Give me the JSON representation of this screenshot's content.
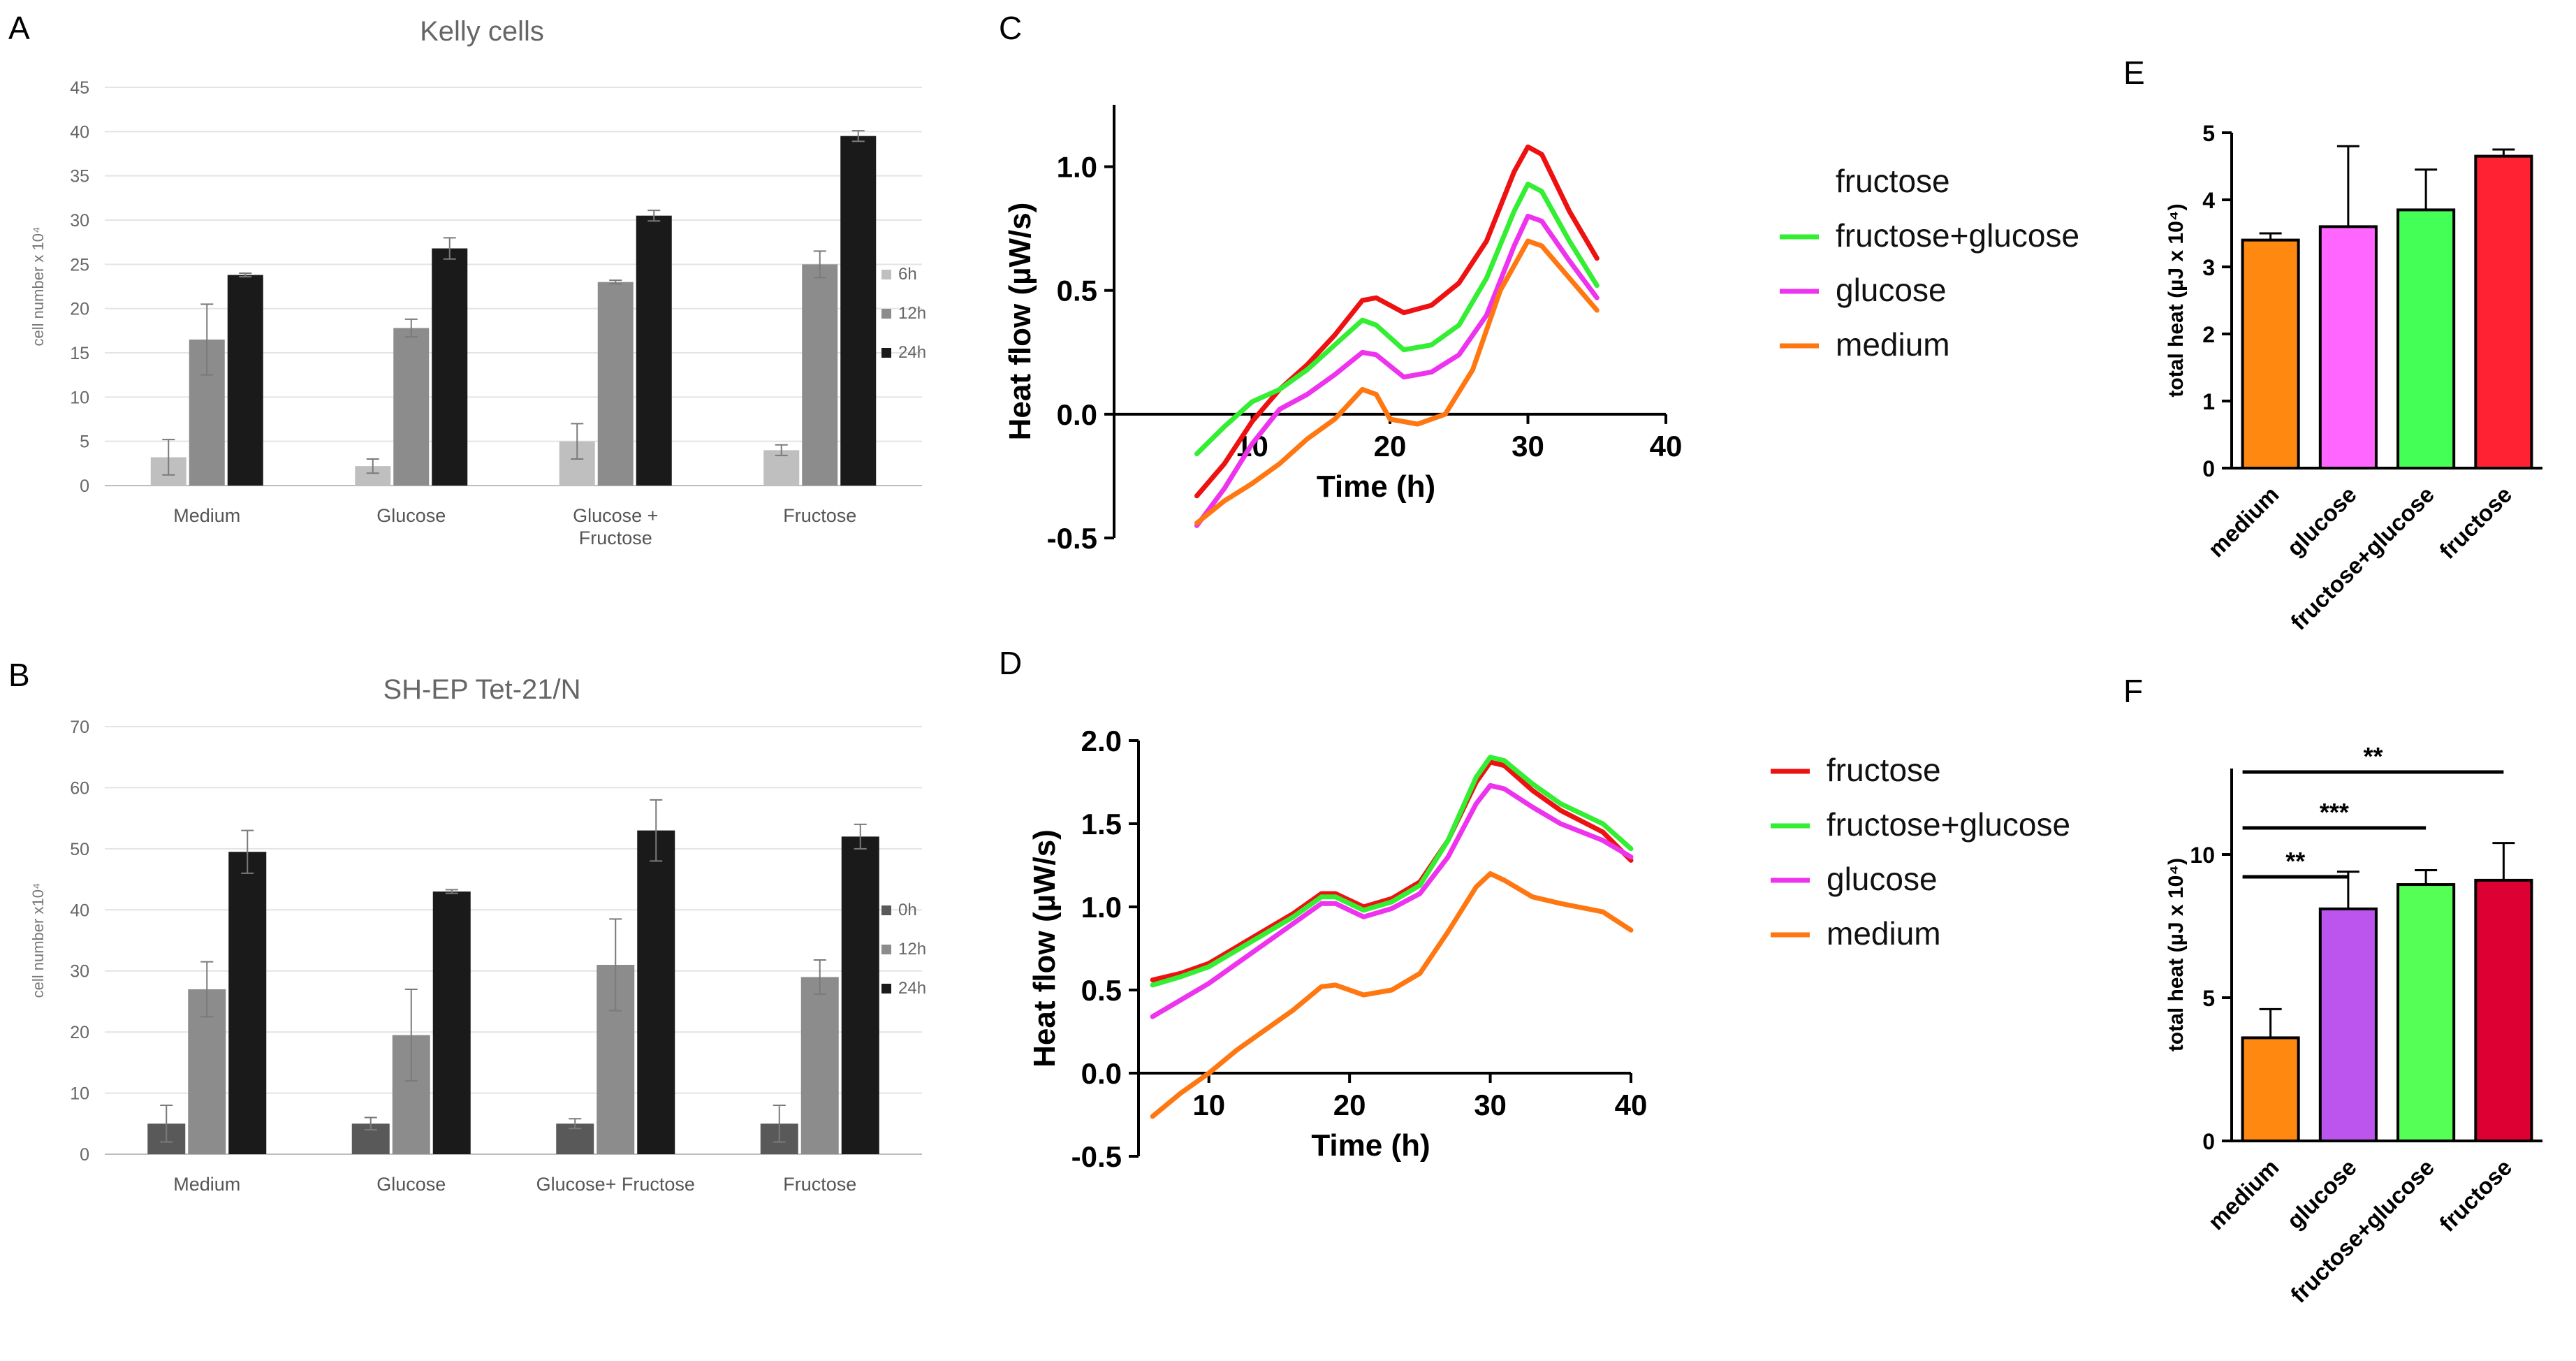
{
  "chart_data": [
    {
      "panel": "A",
      "type": "bar",
      "title": "Kelly cells",
      "ylabel": "cell number x 10⁴",
      "ylim": [
        0,
        45
      ],
      "yticks": [
        0,
        5,
        10,
        15,
        20,
        25,
        30,
        35,
        40,
        45
      ],
      "categories": [
        "Medium",
        "Glucose",
        "Glucose +\nFructose",
        "Fructose"
      ],
      "series": [
        {
          "name": "6h",
          "color": "#bfbfbf",
          "values": [
            3.2,
            2.2,
            5.0,
            4.0
          ],
          "errors": [
            2.0,
            0.8,
            2.0,
            0.6
          ]
        },
        {
          "name": "12h",
          "color": "#8c8c8c",
          "values": [
            16.5,
            17.8,
            23.0,
            25.0
          ],
          "errors": [
            4.0,
            1.0,
            0.2,
            1.5
          ]
        },
        {
          "name": "24h",
          "color": "#1a1a1a",
          "values": [
            23.8,
            26.8,
            30.5,
            39.5
          ],
          "errors": [
            0.2,
            1.2,
            0.6,
            0.6
          ]
        }
      ]
    },
    {
      "panel": "B",
      "type": "bar",
      "title": "SH-EP Tet-21/N",
      "ylabel": "cell number x10⁴",
      "ylim": [
        0,
        70
      ],
      "yticks": [
        0,
        10,
        20,
        30,
        40,
        50,
        60,
        70
      ],
      "categories": [
        "Medium",
        "Glucose",
        "Glucose+ Fructose",
        "Fructose"
      ],
      "series": [
        {
          "name": "0h",
          "color": "#595959",
          "values": [
            5.0,
            5.0,
            5.0,
            5.0
          ],
          "errors": [
            3.0,
            1.0,
            0.8,
            3.0
          ]
        },
        {
          "name": "12h",
          "color": "#8c8c8c",
          "values": [
            27.0,
            19.5,
            31.0,
            29.0
          ],
          "errors": [
            4.5,
            7.5,
            7.5,
            2.8
          ]
        },
        {
          "name": "24h",
          "color": "#1a1a1a",
          "values": [
            49.5,
            43.0,
            53.0,
            52.0
          ],
          "errors": [
            3.5,
            0.3,
            5.0,
            2.0
          ]
        }
      ]
    },
    {
      "panel": "C",
      "type": "line",
      "xlabel": "Time (h)",
      "ylabel": "Heat flow (µW/s)",
      "xlim": [
        0,
        40
      ],
      "ylim": [
        -0.5,
        1.25
      ],
      "xticks": [
        10,
        20,
        30,
        40
      ],
      "yticks": [
        -0.5,
        0.0,
        0.5,
        1.0
      ],
      "ytick_labels": [
        "-0.5",
        "0.0",
        "0.5",
        "1.0"
      ],
      "legend": [
        "fructose",
        "fructose+glucose",
        "glucose",
        "medium"
      ],
      "series": [
        {
          "name": "fructose",
          "color": "#ee1111",
          "x": [
            6,
            8,
            10,
            12,
            14,
            16,
            18,
            19,
            21,
            23,
            25,
            27,
            29,
            30,
            31,
            33,
            35
          ],
          "y": [
            -0.33,
            -0.2,
            -0.03,
            0.1,
            0.2,
            0.32,
            0.46,
            0.47,
            0.41,
            0.44,
            0.53,
            0.7,
            0.98,
            1.08,
            1.05,
            0.82,
            0.63
          ]
        },
        {
          "name": "fructose+glucose",
          "color": "#33ee33",
          "x": [
            6,
            8,
            10,
            12,
            14,
            16,
            18,
            19,
            21,
            23,
            25,
            27,
            29,
            30,
            31,
            33,
            35
          ],
          "y": [
            -0.16,
            -0.05,
            0.05,
            0.1,
            0.18,
            0.28,
            0.38,
            0.36,
            0.26,
            0.28,
            0.36,
            0.55,
            0.82,
            0.93,
            0.9,
            0.7,
            0.52
          ]
        },
        {
          "name": "glucose",
          "color": "#ee33ee",
          "x": [
            6,
            8,
            10,
            12,
            14,
            16,
            18,
            19,
            21,
            23,
            25,
            27,
            29,
            30,
            31,
            33,
            35
          ],
          "y": [
            -0.45,
            -0.3,
            -0.12,
            0.02,
            0.08,
            0.16,
            0.25,
            0.24,
            0.15,
            0.17,
            0.24,
            0.4,
            0.68,
            0.8,
            0.78,
            0.62,
            0.47
          ]
        },
        {
          "name": "medium",
          "color": "#ff7711",
          "x": [
            6,
            8,
            10,
            12,
            14,
            16,
            18,
            19,
            20,
            22,
            24,
            26,
            28,
            30,
            31,
            33,
            35
          ],
          "y": [
            -0.44,
            -0.35,
            -0.28,
            -0.2,
            -0.1,
            -0.02,
            0.1,
            0.08,
            -0.02,
            -0.04,
            0.0,
            0.18,
            0.5,
            0.7,
            0.68,
            0.55,
            0.42
          ]
        }
      ]
    },
    {
      "panel": "D",
      "type": "line",
      "xlabel": "Time (h)",
      "ylabel": "Heat flow (µW/s)",
      "xlim": [
        5,
        40
      ],
      "ylim": [
        -0.5,
        2.0
      ],
      "xticks": [
        10,
        20,
        30,
        40
      ],
      "yticks": [
        -0.5,
        0.0,
        0.5,
        1.0,
        1.5,
        2.0
      ],
      "ytick_labels": [
        "-0.5",
        "0.0",
        "0.5",
        "1.0",
        "1.5",
        "2.0"
      ],
      "legend": [
        "fructose",
        "fructose+glucose",
        "glucose",
        "medium"
      ],
      "series": [
        {
          "name": "fructose",
          "color": "#ee1111",
          "x": [
            6,
            8,
            10,
            12,
            14,
            16,
            18,
            19,
            21,
            23,
            25,
            27,
            29,
            30,
            31,
            33,
            35,
            38,
            40
          ],
          "y": [
            0.56,
            0.6,
            0.66,
            0.76,
            0.86,
            0.96,
            1.08,
            1.08,
            1.0,
            1.05,
            1.15,
            1.4,
            1.75,
            1.87,
            1.85,
            1.7,
            1.58,
            1.45,
            1.28
          ]
        },
        {
          "name": "fructose+glucose",
          "color": "#33ee33",
          "x": [
            6,
            8,
            10,
            12,
            14,
            16,
            18,
            19,
            21,
            23,
            25,
            27,
            29,
            30,
            31,
            33,
            35,
            38,
            40
          ],
          "y": [
            0.53,
            0.58,
            0.64,
            0.74,
            0.84,
            0.94,
            1.06,
            1.06,
            0.98,
            1.03,
            1.13,
            1.4,
            1.78,
            1.9,
            1.88,
            1.74,
            1.62,
            1.5,
            1.35
          ]
        },
        {
          "name": "glucose",
          "color": "#ee33ee",
          "x": [
            6,
            8,
            10,
            12,
            14,
            16,
            18,
            19,
            21,
            23,
            25,
            27,
            29,
            30,
            31,
            33,
            35,
            38,
            40
          ],
          "y": [
            0.34,
            0.44,
            0.54,
            0.66,
            0.78,
            0.9,
            1.02,
            1.02,
            0.94,
            0.99,
            1.08,
            1.3,
            1.62,
            1.73,
            1.71,
            1.6,
            1.5,
            1.4,
            1.3
          ]
        },
        {
          "name": "medium",
          "color": "#ff7711",
          "x": [
            6,
            8,
            10,
            12,
            14,
            16,
            18,
            19,
            21,
            23,
            25,
            27,
            29,
            30,
            31,
            33,
            35,
            38,
            40
          ],
          "y": [
            -0.26,
            -0.12,
            0.0,
            0.14,
            0.26,
            0.38,
            0.52,
            0.53,
            0.47,
            0.5,
            0.6,
            0.85,
            1.12,
            1.2,
            1.16,
            1.06,
            1.02,
            0.97,
            0.86
          ]
        }
      ]
    },
    {
      "panel": "E",
      "type": "bar",
      "ylabel": "total heat (µJ x 10⁴)",
      "ylim": [
        0,
        5
      ],
      "yticks": [
        0,
        1,
        2,
        3,
        4,
        5
      ],
      "categories": [
        "medium",
        "glucose",
        "fructose+glucose",
        "fructose"
      ],
      "values": [
        3.4,
        3.6,
        3.85,
        4.65
      ],
      "errors": [
        0.1,
        1.2,
        0.6,
        0.1
      ],
      "colors": [
        "#ff8811",
        "#ff66ff",
        "#44ff55",
        "#ff2233"
      ]
    },
    {
      "panel": "F",
      "type": "bar",
      "ylabel": "total heat (µJ x 10⁴)",
      "ylim": [
        0,
        13
      ],
      "yticks": [
        0,
        5,
        10
      ],
      "categories": [
        "medium",
        "glucose",
        "fructose+glucose",
        "fructose"
      ],
      "values": [
        3.6,
        8.1,
        8.95,
        9.1
      ],
      "errors": [
        1.0,
        1.3,
        0.5,
        1.3
      ],
      "colors": [
        "#ff8811",
        "#bb55ee",
        "#55ff55",
        "#dd0033"
      ],
      "significance": [
        {
          "from": 0,
          "to": 1,
          "label": "**"
        },
        {
          "from": 0,
          "to": 2,
          "label": "***"
        },
        {
          "from": 0,
          "to": 3,
          "label": "**"
        }
      ]
    }
  ]
}
